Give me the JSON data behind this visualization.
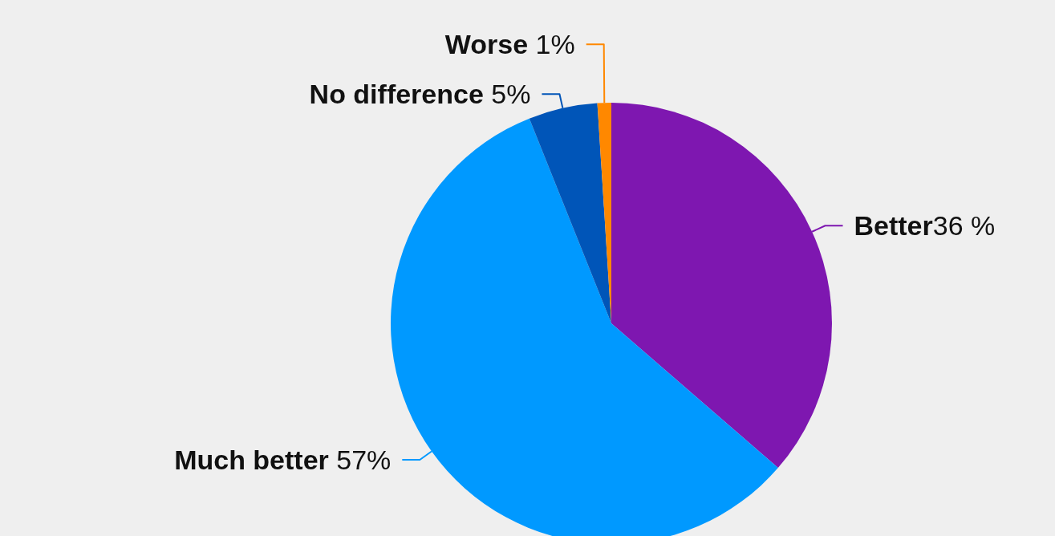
{
  "chart_data": {
    "type": "pie",
    "categories": [
      "Better",
      "Much better",
      "No difference",
      "Worse"
    ],
    "values": [
      36,
      57,
      5,
      1
    ],
    "colors": [
      "#7e17b0",
      "#0099ff",
      "#0055b8",
      "#ff8800"
    ],
    "value_labels": [
      "36 %",
      "57%",
      "5%",
      "1%"
    ]
  }
}
